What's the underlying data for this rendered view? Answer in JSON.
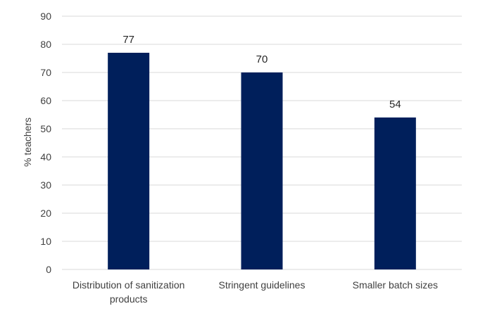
{
  "chart_data": {
    "type": "bar",
    "title": "",
    "xlabel": "",
    "ylabel": "% teachers",
    "ylim": [
      0,
      90
    ],
    "yticks": [
      0,
      10,
      20,
      30,
      40,
      50,
      60,
      70,
      80,
      90
    ],
    "categories": [
      [
        "Distribution of sanitization",
        "products"
      ],
      [
        "Stringent guidelines"
      ],
      [
        "Smaller batch sizes"
      ]
    ],
    "values": [
      77,
      70,
      54
    ],
    "data_labels": [
      "77",
      "70",
      "54"
    ],
    "grid": true,
    "legend": "none",
    "colors": {
      "bar": "#001f5b",
      "grid": "#d9d9d9",
      "text": "#404040"
    }
  }
}
